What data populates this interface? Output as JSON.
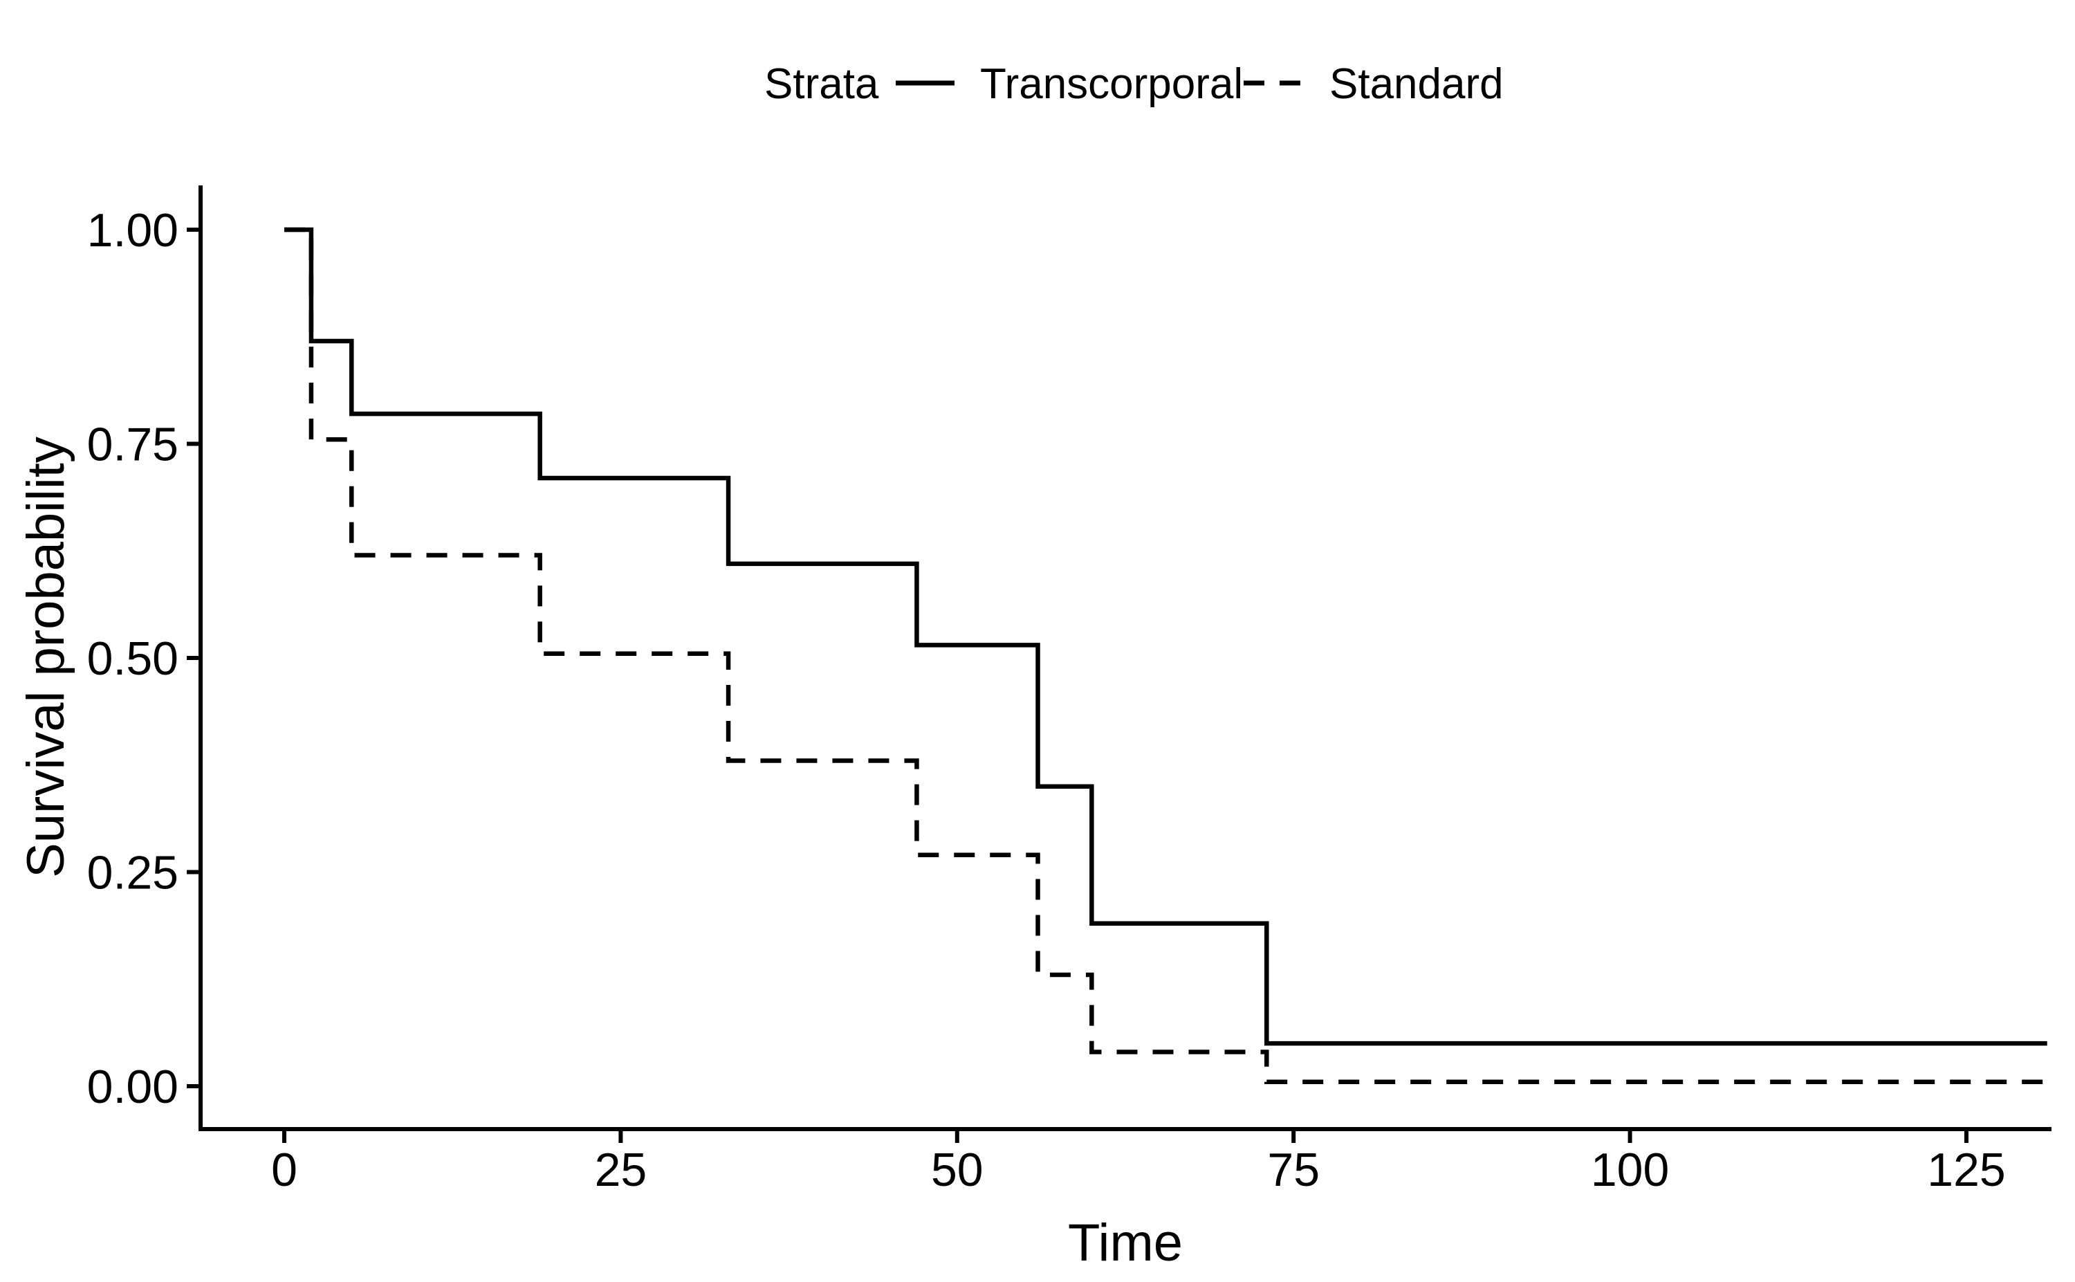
{
  "figure": {
    "background_color": "#ffffff",
    "foreground_color": "#000000"
  },
  "chart_data": {
    "type": "line",
    "variant": "kaplan-meier-step",
    "title": "",
    "xlabel": "Time",
    "ylabel": "Survival probability",
    "grid": "off",
    "legend": {
      "title": "Strata",
      "position": "top-center",
      "entries": [
        {
          "label": "Transcorporal",
          "line_style": "solid",
          "color": "#000000"
        },
        {
          "label": "Standard",
          "line_style": "dashed",
          "color": "#000000"
        }
      ]
    },
    "x_axis": {
      "ticks": [
        0,
        25,
        50,
        75,
        100,
        125
      ],
      "tick_labels": [
        "0",
        "25",
        "50",
        "75",
        "100",
        "125"
      ],
      "range": [
        0,
        131
      ]
    },
    "y_axis": {
      "ticks": [
        0,
        0.25,
        0.5,
        0.75,
        1
      ],
      "tick_labels": [
        "0.00",
        "0.25",
        "0.50",
        "0.75",
        "1.00"
      ],
      "range": [
        0,
        1
      ]
    },
    "series": [
      {
        "name": "Transcorporal",
        "line_style": "solid",
        "color": "#000000",
        "x": [
          0,
          2,
          5,
          19,
          33,
          47,
          56,
          60,
          73,
          131
        ],
        "y": [
          1.0,
          0.87,
          0.785,
          0.71,
          0.61,
          0.515,
          0.35,
          0.19,
          0.05,
          0.05
        ]
      },
      {
        "name": "Standard",
        "line_style": "dashed",
        "color": "#000000",
        "x": [
          0,
          2,
          5,
          19,
          33,
          47,
          56,
          60,
          73,
          131
        ],
        "y": [
          1.0,
          0.755,
          0.62,
          0.505,
          0.38,
          0.27,
          0.13,
          0.04,
          0.005,
          0.005
        ]
      }
    ]
  }
}
